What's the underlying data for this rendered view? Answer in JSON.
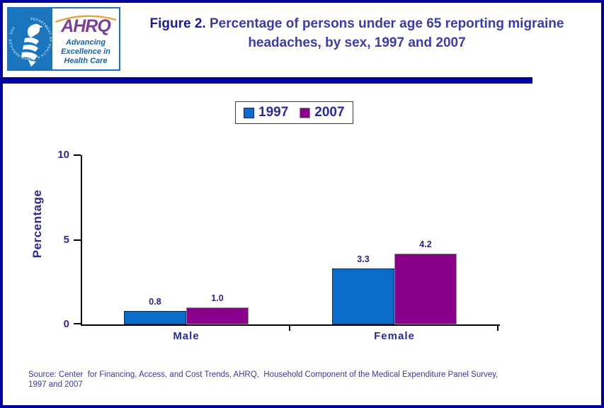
{
  "header": {
    "logo": {
      "org": "AHRQ",
      "tagline": "Advancing Excellence in Health Care",
      "seal_text": "DEPARTMENT OF HEALTH & HUMAN SERVICES · USA"
    },
    "title_prefix": "Figure 2.",
    "title_rest": "Percentage of persons under age 65 reporting migraine headaches, by sex, 1997 and 2007"
  },
  "chart_data": {
    "type": "bar",
    "categories": [
      "Male",
      "Female"
    ],
    "series": [
      {
        "name": "1997",
        "color": "#0a6bc8",
        "border_color": "#002f6c",
        "values": [
          0.8,
          3.3
        ]
      },
      {
        "name": "2007",
        "color": "#8b008b",
        "border_color": "#8f8f8f",
        "values": [
          1.0,
          4.2
        ]
      }
    ],
    "bar_value_labels": {
      "Male": {
        "1997": "0.8",
        "2007": "1.0"
      },
      "Female": {
        "1997": "3.3",
        "2007": "4.2"
      }
    },
    "ylabel": "Percentage",
    "xlabel": "",
    "ylim": [
      0,
      10
    ],
    "yticks": [
      0,
      5,
      10
    ],
    "grid": false,
    "legend_position": "top-center"
  },
  "colors": {
    "frame": "#0000a0",
    "divider": "#0000a0",
    "chart_text": "#2b2b9c",
    "axis": "#000000"
  },
  "source_note": "Source: Center  for Financing, Access, and Cost Trends, AHRQ,  Household Component of the Medical Expenditure Panel Survey,\n1997 and 2007"
}
